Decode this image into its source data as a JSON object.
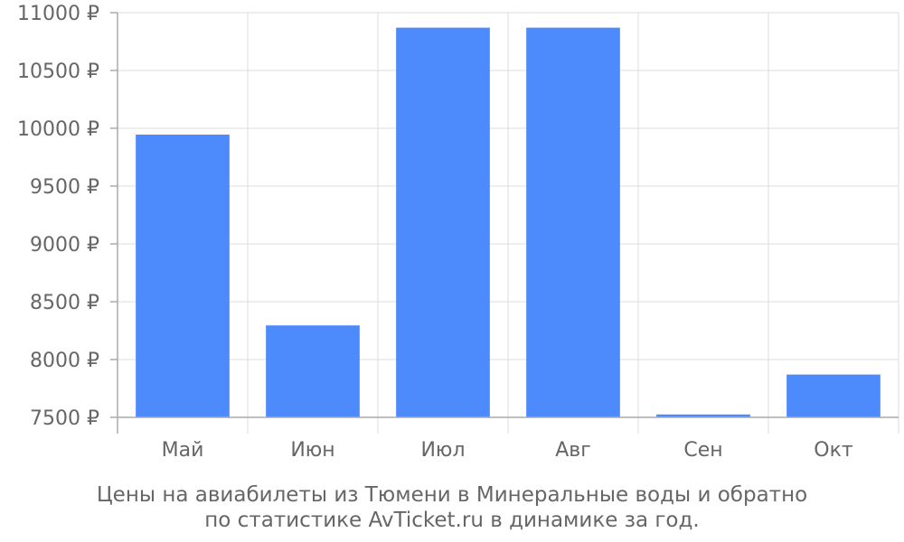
{
  "chart_data": {
    "type": "bar",
    "categories": [
      "Май",
      "Июн",
      "Июл",
      "Авг",
      "Сен",
      "Окт"
    ],
    "values": [
      9945,
      8295,
      10870,
      10870,
      7525,
      7870
    ],
    "yticks": [
      "7500 ₽",
      "8000 ₽",
      "8500 ₽",
      "9000 ₽",
      "9500 ₽",
      "10000 ₽",
      "10500 ₽",
      "11000 ₽"
    ],
    "ytick_values": [
      7500,
      8000,
      8500,
      9000,
      9500,
      10000,
      10500,
      11000
    ],
    "ylim": [
      7500,
      11000
    ],
    "grid": true,
    "bar_color": "#4d8afb",
    "caption_line1": "Цены на авиабилеты из Тюмени в Минеральные воды и обратно",
    "caption_line2": "по статистике AvTicket.ru в динамике за год."
  }
}
